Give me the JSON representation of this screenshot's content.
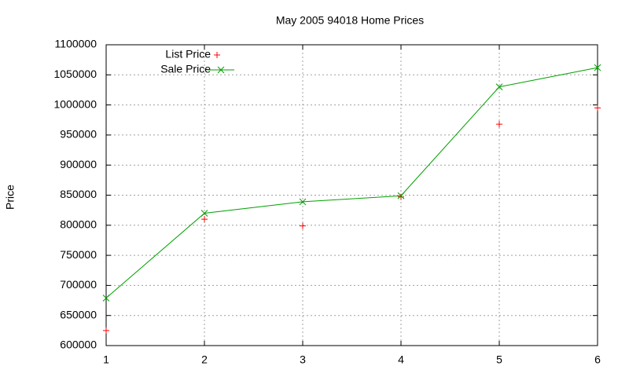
{
  "chart_data": {
    "type": "line",
    "title": "May 2005 94018 Home Prices",
    "y_label": "Price",
    "x": [
      1,
      2,
      3,
      4,
      5,
      6
    ],
    "series": [
      {
        "name": "List Price",
        "color": "#ff0000",
        "marker": "plus",
        "line": false,
        "values": [
          625000,
          810000,
          799000,
          847000,
          968000,
          995000
        ]
      },
      {
        "name": "Sale Price",
        "color": "#00a000",
        "marker": "cross",
        "line": true,
        "values": [
          679000,
          820000,
          839000,
          849000,
          1030000,
          1062000
        ]
      }
    ],
    "xlim": [
      1,
      6
    ],
    "xticks": [
      1,
      2,
      3,
      4,
      5,
      6
    ],
    "ylim": [
      600000,
      1100000
    ],
    "yticks": [
      600000,
      650000,
      700000,
      750000,
      800000,
      850000,
      900000,
      950000,
      1000000,
      1050000,
      1100000
    ],
    "grid": true,
    "legend": "upper left"
  }
}
